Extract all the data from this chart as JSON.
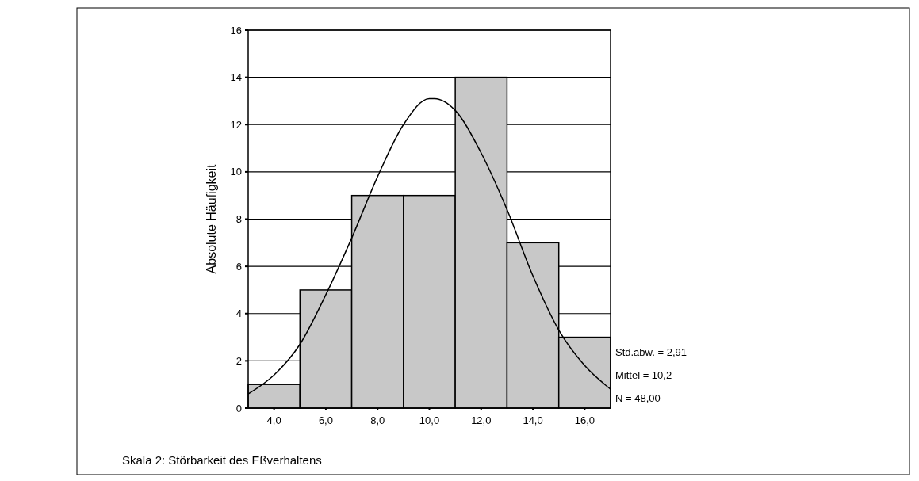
{
  "chart_data": {
    "type": "histogram",
    "xlabel": "Skala 2: Störbarkeit des Eßverhaltens",
    "ylabel": "Absolute Häufigkeit",
    "bins": [
      3,
      5,
      7,
      9,
      11,
      13,
      15,
      17
    ],
    "values": [
      1,
      5,
      9,
      9,
      14,
      7,
      3
    ],
    "color": "#c8c8c8",
    "series": [
      {
        "type": "line",
        "color": "#000000",
        "x": [
          3,
          4,
          5,
          6,
          7,
          8,
          9,
          10,
          10.2,
          11,
          12,
          13,
          14,
          15,
          16,
          17
        ],
        "values": [
          0.6,
          1.4,
          2.7,
          4.8,
          7.2,
          9.8,
          12.0,
          13.1,
          13.1,
          12.6,
          10.8,
          8.4,
          5.6,
          3.3,
          1.8,
          0.8
        ]
      }
    ],
    "xlim": [
      3,
      17
    ],
    "ylim": [
      0,
      16
    ],
    "xticks": [
      {
        "value": 4,
        "label": "4,0"
      },
      {
        "value": 6,
        "label": "6,0"
      },
      {
        "value": 8,
        "label": "8,0"
      },
      {
        "value": 10,
        "label": "10,0"
      },
      {
        "value": 12,
        "label": "12,0"
      },
      {
        "value": 14,
        "label": "14,0"
      },
      {
        "value": 16,
        "label": "16,0"
      }
    ],
    "yticks": [
      0,
      2,
      4,
      6,
      8,
      10,
      12,
      14,
      16
    ],
    "grid": "y",
    "marker": "none",
    "line_style": "solid",
    "annotations": [
      "Std.abw. = 2,91",
      "Mittel = 10,2",
      "N = 48,00"
    ]
  }
}
